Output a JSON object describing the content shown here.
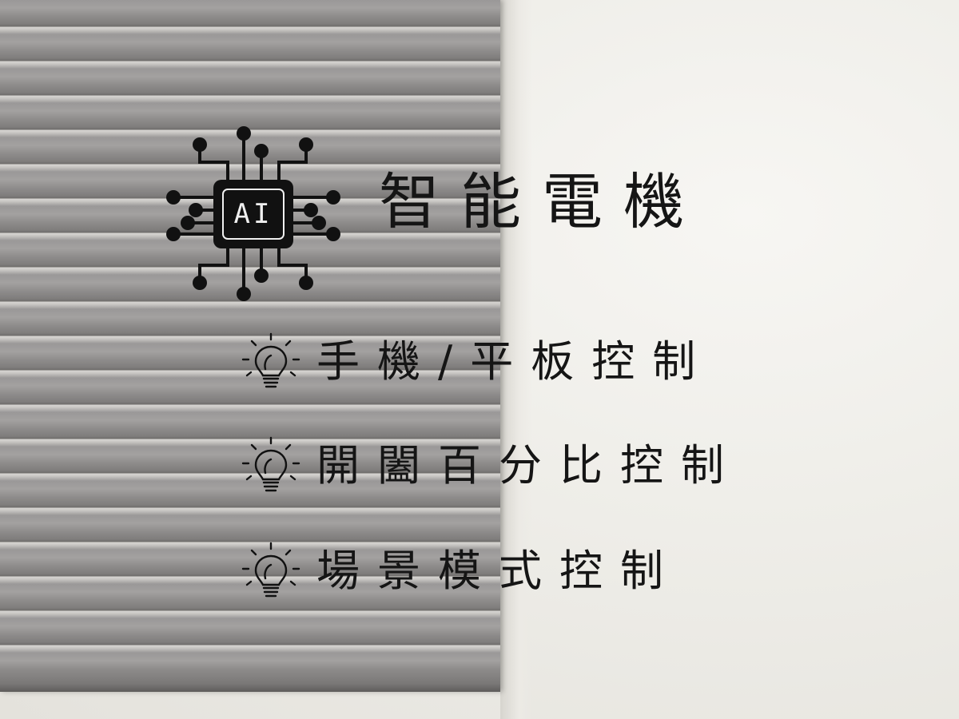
{
  "title": "智能電機",
  "chip_label": "AI",
  "features": [
    {
      "label": "手機/平板控制",
      "icon": "lightbulb-icon"
    },
    {
      "label": "開闔百分比控制",
      "icon": "lightbulb-icon"
    },
    {
      "label": "場景模式控制",
      "icon": "lightbulb-icon"
    }
  ],
  "colors": {
    "text": "#151515",
    "blinds": "#8e8c8b",
    "wall": "#efeee9"
  }
}
